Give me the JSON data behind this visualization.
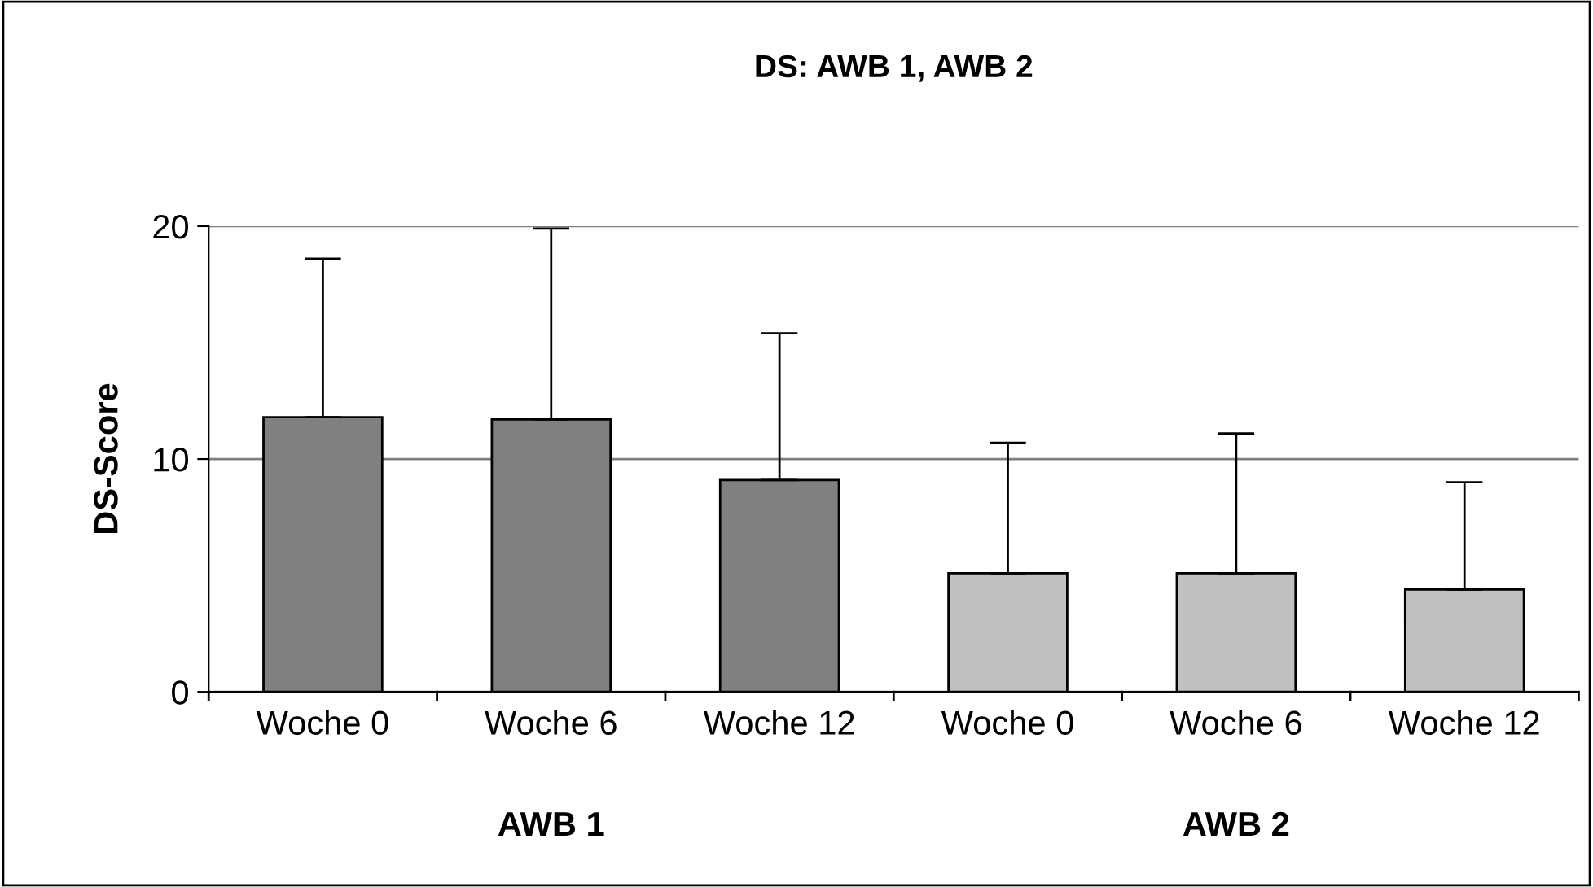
{
  "chart_data": {
    "type": "bar",
    "title": "DS: AWB 1, AWB 2",
    "ylabel": "DS-Score",
    "categories": [
      "Woche 0",
      "Woche 6",
      "Woche 12",
      "Woche 0",
      "Woche 6",
      "Woche 12"
    ],
    "values": [
      11.8,
      11.7,
      9.1,
      5.1,
      5.1,
      4.4
    ],
    "colors": [
      "#808080",
      "#808080",
      "#808080",
      "#c0c0c0",
      "#c0c0c0",
      "#c0c0c0"
    ],
    "errors": [
      [
        11.8,
        18.6
      ],
      [
        11.7,
        19.9
      ],
      [
        9.1,
        15.4
      ],
      [
        5.1,
        10.7
      ],
      [
        5.1,
        11.1
      ],
      [
        4.4,
        9.0
      ]
    ],
    "annotations": [
      "AWB 1",
      "AWB 2"
    ],
    "ylim": [
      0,
      20
    ],
    "yticks": [
      0,
      10,
      20
    ],
    "grid": "y",
    "legend": false
  }
}
